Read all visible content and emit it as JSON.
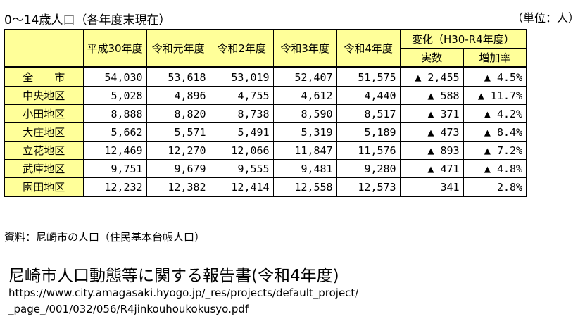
{
  "title": "0～14歳人口（各年度末現在）",
  "unit": "（単位：人）",
  "headers": {
    "years": [
      "平成30年度",
      "令和元年度",
      "令和2年度",
      "令和3年度",
      "令和4年度"
    ],
    "change": "変化（H30-R4年度）",
    "change_count": "実数",
    "change_rate": "増加率"
  },
  "rows": [
    {
      "label": "全　　市",
      "v": [
        "54,030",
        "53,618",
        "53,019",
        "52,407",
        "51,575"
      ],
      "diff": "▲ 2,455",
      "rate": "▲ 4.5%"
    },
    {
      "label": "中央地区",
      "v": [
        "5,028",
        "4,896",
        "4,755",
        "4,612",
        "4,440"
      ],
      "diff": "▲ 588",
      "rate": "▲ 11.7%"
    },
    {
      "label": "小田地区",
      "v": [
        "8,888",
        "8,820",
        "8,738",
        "8,590",
        "8,517"
      ],
      "diff": "▲ 371",
      "rate": "▲ 4.2%"
    },
    {
      "label": "大庄地区",
      "v": [
        "5,662",
        "5,571",
        "5,491",
        "5,319",
        "5,189"
      ],
      "diff": "▲ 473",
      "rate": "▲ 8.4%"
    },
    {
      "label": "立花地区",
      "v": [
        "12,469",
        "12,270",
        "12,066",
        "11,847",
        "11,576"
      ],
      "diff": "▲ 893",
      "rate": "▲ 7.2%"
    },
    {
      "label": "武庫地区",
      "v": [
        "9,751",
        "9,679",
        "9,555",
        "9,481",
        "9,280"
      ],
      "diff": "▲ 471",
      "rate": "▲ 4.8%"
    },
    {
      "label": "園田地区",
      "v": [
        "12,232",
        "12,382",
        "12,414",
        "12,558",
        "12,573"
      ],
      "diff": "341",
      "rate": "2.8%"
    }
  ],
  "source": "資料：尼崎市の人口（住民基本台帳人口）",
  "report_title": "尼崎市人口動態等に関する報告書(令和4年度)",
  "url_line1": "https://www.city.amagasaki.hyogo.jp/_res/projects/default_project/",
  "url_line2": "_page_/001/032/056/R4jinkouhoukokusyo.pdf"
}
